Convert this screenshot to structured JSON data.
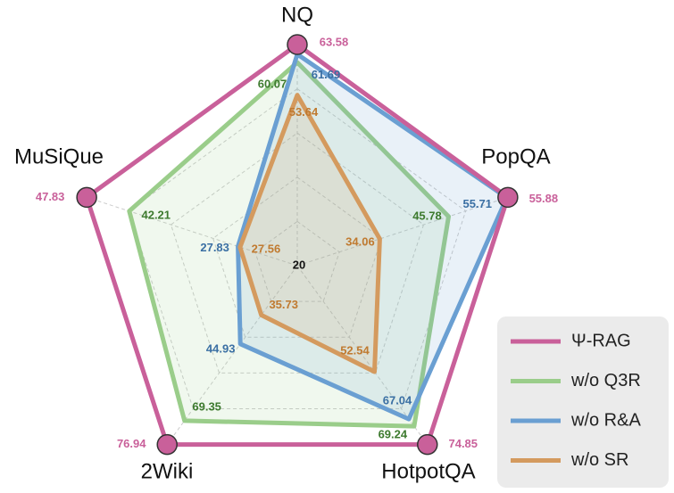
{
  "chart_data": {
    "type": "radar",
    "axes": [
      "NQ",
      "PopQA",
      "HotpotQA",
      "2Wiki",
      "MuSiQue"
    ],
    "rmin": 20,
    "grid": true,
    "legend": "lower right",
    "series": [
      {
        "name": "Ψ-RAG",
        "color": "#c9609a",
        "label_color": "#c9609a",
        "filled": false,
        "markers": true,
        "values": [
          63.58,
          55.88,
          74.85,
          76.94,
          47.83
        ]
      },
      {
        "name": "w/o Q3R",
        "color": "#9acd8a",
        "label_color": "#3d7a2e",
        "filled": true,
        "markers": false,
        "values": [
          60.07,
          45.78,
          69.24,
          69.35,
          42.21
        ]
      },
      {
        "name": "w/o R&A",
        "color": "#6a9fd2",
        "label_color": "#3a6fa3",
        "filled": true,
        "markers": false,
        "values": [
          61.69,
          55.71,
          67.04,
          44.93,
          27.83
        ]
      },
      {
        "name": "w/o SR",
        "color": "#d49a5e",
        "label_color": "#c07a30",
        "filled": true,
        "markers": false,
        "values": [
          53.64,
          34.06,
          52.54,
          35.73,
          27.56
        ]
      }
    ]
  }
}
